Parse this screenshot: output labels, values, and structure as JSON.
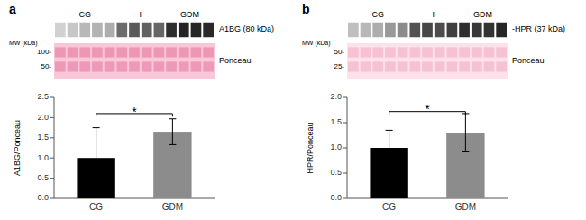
{
  "chart_data": [
    {
      "type": "blot",
      "title": "a",
      "groups": [
        {
          "label": "CG",
          "lanes": 5
        },
        {
          "label": "I",
          "lanes": 4
        },
        {
          "label": "GDM",
          "lanes": 4
        }
      ],
      "rows": [
        {
          "name": "A1BG (80 kDa)",
          "values": [
            0.82,
            0.78,
            0.72,
            0.7,
            0.68,
            0.42,
            0.35,
            0.38,
            0.4,
            0.18,
            0.14,
            0.15,
            0.16
          ]
        },
        {
          "name": "Ponceau",
          "top": [
            0.62,
            0.64,
            0.63,
            0.63,
            0.62,
            0.62,
            0.62,
            0.62,
            0.62,
            0.62,
            0.62,
            0.62,
            0.62
          ],
          "bottom": [
            0.72,
            0.72,
            0.72,
            0.72,
            0.72,
            0.72,
            0.72,
            0.72,
            0.72,
            0.72,
            0.72,
            0.72,
            0.72
          ],
          "color": "#eb8cad",
          "background": "#fac7d9"
        }
      ],
      "mw_label": "MW (kDa)",
      "mw_ticks": [
        {
          "value": 100,
          "label": "100-"
        },
        {
          "value": 50,
          "label": "50-"
        }
      ]
    },
    {
      "type": "bar",
      "categories": [
        "CG",
        "GDM"
      ],
      "values": [
        1.0,
        1.65
      ],
      "errors": [
        0.75,
        0.32
      ],
      "colors": [
        "#000000",
        "#8c8c8c"
      ],
      "ylabel": "A1BG/Ponceau",
      "ylim": [
        0.0,
        2.5
      ],
      "yticks": [
        {
          "value": 0.0,
          "label": "0.0"
        },
        0.5,
        {
          "value": 1.0,
          "label": "1.0"
        },
        1.5,
        {
          "value": 2.0,
          "label": "2.0"
        },
        2.5
      ],
      "annotation": {
        "text": "*",
        "y": 2.15,
        "bracket_y": 2.1
      }
    },
    {
      "type": "blot",
      "title": "b",
      "groups": [
        {
          "label": "CG",
          "lanes": 5
        },
        {
          "label": "I",
          "lanes": 4
        },
        {
          "label": "GDM",
          "lanes": 4
        }
      ],
      "rows": [
        {
          "name": "-HPR (37 kDa)",
          "values": [
            0.75,
            0.72,
            0.68,
            0.6,
            0.55,
            0.32,
            0.28,
            0.3,
            0.25,
            0.18,
            0.22,
            0.2,
            0.15
          ]
        },
        {
          "name": "Ponceau",
          "top": [
            0.72,
            0.72,
            0.72,
            0.72,
            0.72,
            0.72,
            0.72,
            0.72,
            0.72,
            0.72,
            0.72,
            0.72,
            0.72
          ],
          "bottom": [
            0.85,
            0.85,
            0.85,
            0.85,
            0.85,
            0.85,
            0.85,
            0.85,
            0.85,
            0.85,
            0.85,
            0.85,
            0.85
          ],
          "color": "#f2b8cc",
          "background": "#ffe0eb"
        }
      ],
      "mw_label": "MW (kDa)",
      "mw_ticks": [
        {
          "value": 50,
          "label": "50-"
        },
        {
          "value": 25,
          "label": "25-"
        }
      ]
    },
    {
      "type": "bar",
      "categories": [
        "CG",
        "GDM"
      ],
      "values": [
        1.0,
        1.3
      ],
      "errors": [
        0.35,
        0.38
      ],
      "colors": [
        "#000000",
        "#8c8c8c"
      ],
      "ylabel": "HPR/Ponceau",
      "ylim": [
        0.0,
        2.0
      ],
      "yticks": [
        {
          "value": 0.0,
          "label": "0.0"
        },
        0.5,
        {
          "value": 1.0,
          "label": "1.0"
        },
        1.5,
        {
          "value": 2.0,
          "label": "2.0"
        }
      ],
      "annotation": {
        "text": "*",
        "y": 1.76,
        "bracket_y": 1.72
      }
    }
  ]
}
